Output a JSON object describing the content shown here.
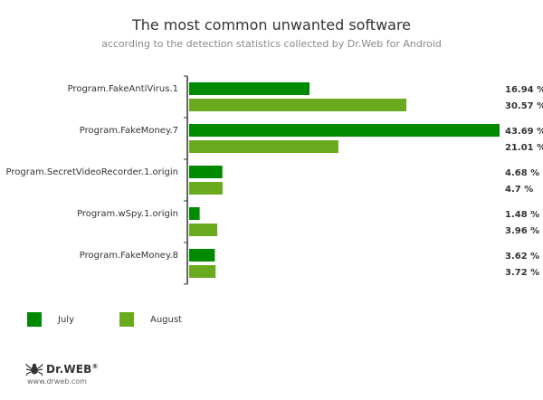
{
  "chart_data": {
    "type": "bar",
    "orientation": "horizontal",
    "title": "The most common unwanted software",
    "subtitle": "according to the detection statistics collected by Dr.Web for Android",
    "categories": [
      "Program.FakeAntiVirus.1",
      "Program.FakeMoney.7",
      "Program.SecretVideoRecorder.1.origin",
      "Program.wSpy.1.origin",
      "Program.FakeMoney.8"
    ],
    "series": [
      {
        "name": "July",
        "color": "#008A00",
        "values": [
          16.94,
          43.69,
          4.68,
          1.48,
          3.62
        ],
        "labels": [
          "16.94 %",
          "43.69 %",
          "4.68 %",
          "1.48 %",
          "3.62 %"
        ]
      },
      {
        "name": "August",
        "color": "#6AAA1E",
        "values": [
          30.57,
          21.01,
          4.7,
          3.96,
          3.72
        ],
        "labels": [
          "30.57 %",
          "21.01 %",
          "4.7 %",
          "3.96 %",
          "3.72 %"
        ]
      }
    ],
    "xlim": [
      0,
      43.69
    ],
    "grid": false,
    "legend_position": "bottom-left"
  },
  "logo": {
    "name": "Dr.WEB",
    "mark": "®",
    "url": "www.drweb.com",
    "icon": "spider-icon"
  }
}
